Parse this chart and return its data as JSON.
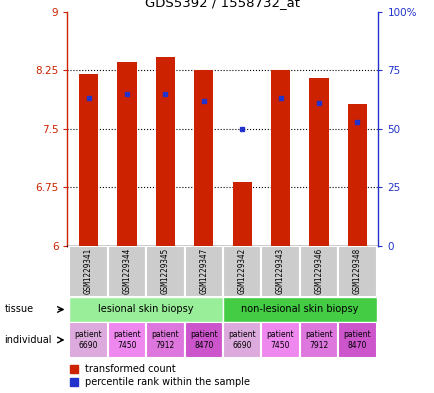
{
  "title": "GDS5392 / 1558732_at",
  "samples": [
    "GSM1229341",
    "GSM1229344",
    "GSM1229345",
    "GSM1229347",
    "GSM1229342",
    "GSM1229343",
    "GSM1229346",
    "GSM1229348"
  ],
  "transformed_counts": [
    8.2,
    8.35,
    8.42,
    8.25,
    6.82,
    8.25,
    8.15,
    7.82
  ],
  "percentile_ranks": [
    63,
    65,
    65,
    62,
    50,
    63,
    61,
    53
  ],
  "ymin": 6,
  "ymax": 9,
  "yticks": [
    6,
    6.75,
    7.5,
    8.25,
    9
  ],
  "ytick_labels": [
    "6",
    "6.75",
    "7.5",
    "8.25",
    "9"
  ],
  "right_yticks": [
    0,
    25,
    50,
    75,
    100
  ],
  "right_ytick_labels": [
    "0",
    "25",
    "50",
    "75",
    "100%"
  ],
  "bar_color": "#cc2200",
  "percentile_color": "#2233cc",
  "tissue_labels": [
    "lesional skin biopsy",
    "non-lesional skin biopsy"
  ],
  "tissue_colors": [
    "#99ee99",
    "#44cc44"
  ],
  "individual_labels": [
    "patient\n6690",
    "patient\n7450",
    "patient\n7912",
    "patient\n8470",
    "patient\n6690",
    "patient\n7450",
    "patient\n7912",
    "patient\n8470"
  ],
  "individual_colors": [
    "#ddaadd",
    "#ee88ee",
    "#dd77dd",
    "#cc55cc",
    "#ddaadd",
    "#ee88ee",
    "#dd77dd",
    "#cc55cc"
  ],
  "legend_bar_label": "transformed count",
  "legend_pct_label": "percentile rank within the sample",
  "sample_bg_color": "#cccccc",
  "left_label_tissue": "tissue",
  "left_label_indiv": "individual"
}
